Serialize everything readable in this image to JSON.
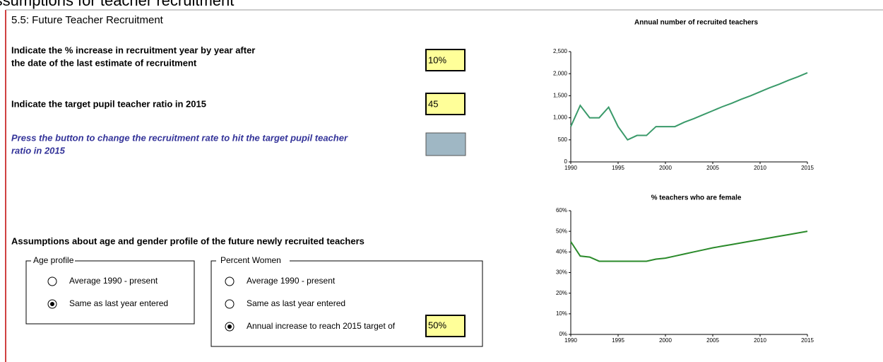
{
  "header": {
    "clipped_title": "Assumptions for teacher recruitment",
    "section": "5.5: Future Teacher Recruitment"
  },
  "form": {
    "increase_prompt": [
      "Indicate the % increase in recruitment year by year after",
      "the date of the last estimate of recruitment"
    ],
    "increase_value": "10%",
    "ratio_prompt": "Indicate the target pupil teacher ratio in 2015",
    "ratio_value": "45",
    "button_prompt": [
      "Press the button to change the recruitment rate to hit the target pupil teacher",
      "ratio in 2015"
    ],
    "assumptions_heading": "Assumptions about age and gender profile of the future newly recruited teachers",
    "age_group": {
      "title": "Age profile",
      "options": [
        {
          "label": "Average 1990 - present",
          "selected": false
        },
        {
          "label": "Same as last year entered",
          "selected": true
        }
      ]
    },
    "women_group": {
      "title": "Percent Women",
      "options": [
        {
          "label": "Average 1990 - present",
          "selected": false
        },
        {
          "label": "Same as last year entered",
          "selected": false
        },
        {
          "label": "Annual increase to reach 2015 target of",
          "selected": true
        }
      ],
      "target_value": "50%"
    }
  },
  "chart_data": [
    {
      "type": "line",
      "title": "Annual number of recruited teachers",
      "x": [
        1990,
        1991,
        1992,
        1993,
        1994,
        1995,
        1996,
        1997,
        1998,
        1999,
        2000,
        2001,
        2002,
        2003,
        2004,
        2005,
        2006,
        2007,
        2008,
        2009,
        2010,
        2011,
        2012,
        2013,
        2014,
        2015
      ],
      "series": [
        {
          "color": "#3a9a6a",
          "values": [
            800,
            1280,
            1000,
            1000,
            1240,
            800,
            500,
            600,
            600,
            800,
            800,
            800,
            900,
            980,
            1070,
            1160,
            1250,
            1330,
            1420,
            1500,
            1590,
            1680,
            1760,
            1850,
            1930,
            2020
          ]
        }
      ],
      "xlim": [
        1990,
        2015
      ],
      "xticks": [
        1990,
        1995,
        2000,
        2005,
        2010,
        2015
      ],
      "ylim": [
        0,
        2500
      ],
      "yticks": [
        0,
        500,
        {
          "value": 1000,
          "label": "1,000"
        },
        {
          "value": 1500,
          "label": "1,500"
        },
        {
          "value": 2000,
          "label": "2,000"
        },
        {
          "value": 2500,
          "label": "2,500"
        }
      ]
    },
    {
      "type": "line",
      "title": "% teachers who are female",
      "x": [
        1990,
        1991,
        1992,
        1993,
        1994,
        1995,
        1996,
        1997,
        1998,
        1999,
        2000,
        2001,
        2002,
        2003,
        2004,
        2005,
        2006,
        2007,
        2008,
        2009,
        2010,
        2011,
        2012,
        2013,
        2014,
        2015
      ],
      "series": [
        {
          "color": "#2a8a2a",
          "values": [
            45,
            38,
            37.5,
            35.5,
            35.5,
            35.5,
            35.5,
            35.5,
            35.5,
            36.5,
            37,
            38,
            39,
            40,
            41,
            42,
            42.8,
            43.6,
            44.4,
            45.2,
            46,
            46.8,
            47.6,
            48.4,
            49.2,
            50
          ]
        }
      ],
      "xlim": [
        1990,
        2015
      ],
      "xticks": [
        1990,
        1995,
        2000,
        2005,
        2010,
        2015
      ],
      "ylim": [
        0,
        60
      ],
      "yticks": [
        {
          "value": 0,
          "label": "0%"
        },
        {
          "value": 10,
          "label": "10%"
        },
        {
          "value": 20,
          "label": "20%"
        },
        {
          "value": 30,
          "label": "30%"
        },
        {
          "value": 40,
          "label": "40%"
        },
        {
          "value": 50,
          "label": "50%"
        },
        {
          "value": 60,
          "label": "60%"
        }
      ]
    }
  ]
}
